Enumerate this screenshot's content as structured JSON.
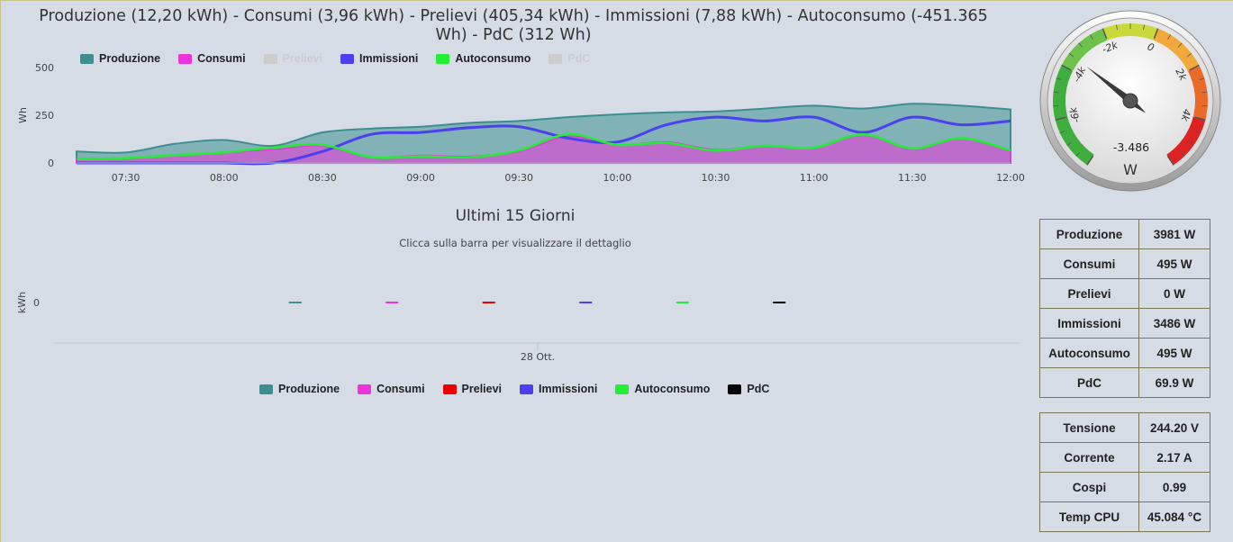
{
  "header": {
    "title_line1": "Produzione (12,20 kWh) - Consumi (3,96 kWh) - Prelievi (405,34 kWh) - Immissioni (7,88 kWh) - Autoconsumo (-451.365",
    "title_line2": "Wh) - PdC (312 Wh)"
  },
  "chart_data": [
    {
      "type": "area",
      "ylabel": "Wh",
      "ylim": [
        0,
        500
      ],
      "yticks": [
        "0",
        "250",
        "500"
      ],
      "xticks": [
        "07:30",
        "08:00",
        "08:30",
        "09:00",
        "09:30",
        "10:00",
        "10:30",
        "11:00",
        "11:30",
        "12:00"
      ],
      "x": [
        "07:15",
        "07:30",
        "07:45",
        "08:00",
        "08:15",
        "08:30",
        "08:45",
        "09:00",
        "09:15",
        "09:30",
        "09:45",
        "10:00",
        "10:15",
        "10:30",
        "10:45",
        "11:00",
        "11:15",
        "11:30",
        "11:45",
        "12:00"
      ],
      "legend": [
        {
          "name": "Produzione",
          "color": "#3d8f8f",
          "visible": true
        },
        {
          "name": "Consumi",
          "color": "#ee33dd",
          "visible": true
        },
        {
          "name": "Prelievi",
          "color": "#cccccc",
          "visible": false
        },
        {
          "name": "Immissioni",
          "color": "#4b3ff0",
          "visible": true
        },
        {
          "name": "Autoconsumo",
          "color": "#22ee33",
          "visible": true
        },
        {
          "name": "PdC",
          "color": "#cccccc",
          "visible": false
        }
      ],
      "series": [
        {
          "name": "Produzione",
          "color": "#3d8f8f",
          "values": [
            60,
            55,
            100,
            120,
            90,
            160,
            180,
            190,
            210,
            220,
            240,
            255,
            265,
            270,
            285,
            300,
            285,
            310,
            300,
            280
          ]
        },
        {
          "name": "Consumi",
          "color": "#ee33dd",
          "values": [
            20,
            25,
            40,
            55,
            70,
            90,
            30,
            40,
            35,
            60,
            140,
            95,
            110,
            70,
            90,
            80,
            150,
            70,
            130,
            60
          ]
        },
        {
          "name": "Immissioni",
          "color": "#4b3ff0",
          "values": [
            0,
            0,
            0,
            0,
            0,
            60,
            150,
            160,
            185,
            190,
            130,
            110,
            200,
            240,
            220,
            240,
            160,
            240,
            200,
            220
          ]
        },
        {
          "name": "Autoconsumo",
          "color": "#22ee33",
          "values": [
            20,
            25,
            40,
            55,
            80,
            95,
            30,
            35,
            30,
            65,
            150,
            95,
            105,
            65,
            90,
            80,
            150,
            75,
            130,
            65
          ]
        }
      ]
    },
    {
      "type": "bar",
      "title": "Ultimi 15 Giorni",
      "subtitle": "Clicca sulla barra per visualizzare il dettaglio",
      "ylabel": "kWh",
      "yticks": [
        "0"
      ],
      "categories": [
        "28 Ott."
      ],
      "series": [
        {
          "name": "Produzione",
          "color": "#3d8f8f",
          "values": [
            0
          ]
        },
        {
          "name": "Consumi",
          "color": "#ee33dd",
          "values": [
            0
          ]
        },
        {
          "name": "Prelievi",
          "color": "#ee0000",
          "values": [
            0
          ]
        },
        {
          "name": "Immissioni",
          "color": "#4b3ff0",
          "values": [
            0
          ]
        },
        {
          "name": "Autoconsumo",
          "color": "#22ee33",
          "values": [
            0
          ]
        },
        {
          "name": "PdC",
          "color": "#000000",
          "values": [
            0
          ]
        }
      ]
    }
  ],
  "gauge": {
    "value": -3486,
    "value_label": "-3.486",
    "unit": "W",
    "min": -8000,
    "max": 6000,
    "tick_labels": [
      "-6k",
      "-4k",
      "-2k",
      "0",
      "2k",
      "4k"
    ],
    "tick_values": [
      -6000,
      -4000,
      -2000,
      0,
      2000,
      4000
    ],
    "bands": [
      {
        "from": -8000,
        "to": -4000,
        "color": "#3fae3f"
      },
      {
        "from": -4000,
        "to": -2000,
        "color": "#6cc24a"
      },
      {
        "from": -2000,
        "to": 0,
        "color": "#c8d93a"
      },
      {
        "from": 0,
        "to": 2000,
        "color": "#f2a93b"
      },
      {
        "from": 2000,
        "to": 4000,
        "color": "#ea6a28"
      },
      {
        "from": 4000,
        "to": 6000,
        "color": "#dd2222"
      }
    ]
  },
  "stats": [
    {
      "label": "Produzione",
      "value": "3981 W"
    },
    {
      "label": "Consumi",
      "value": "495 W"
    },
    {
      "label": "Prelievi",
      "value": "0 W"
    },
    {
      "label": "Immissioni",
      "value": "3486 W"
    },
    {
      "label": "Autoconsumo",
      "value": "495 W"
    },
    {
      "label": "PdC",
      "value": "69.9 W"
    }
  ],
  "electrical": [
    {
      "label": "Tensione",
      "value": "244.20 V"
    },
    {
      "label": "Corrente",
      "value": "2.17 A"
    },
    {
      "label": "Cospi",
      "value": "0.99"
    },
    {
      "label": "Temp CPU",
      "value": "45.084 °C"
    }
  ]
}
